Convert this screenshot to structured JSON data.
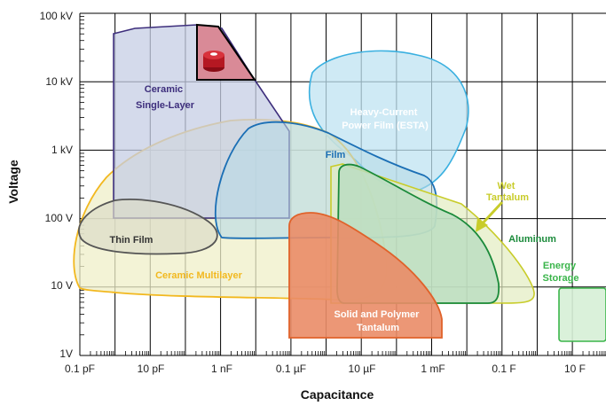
{
  "axes": {
    "x_label": "Capacitance",
    "y_label": "Voltage",
    "x_ticks": [
      "0.1 pF",
      "10 pF",
      "1 nF",
      "0.1 µF",
      "10 µF",
      "1 mF",
      "0.1 F",
      "10 F"
    ],
    "y_ticks": [
      "100 kV",
      "10 kV",
      "1 kV",
      "100 V",
      "10 V",
      "1V"
    ]
  },
  "regions": [
    {
      "id": "ceramic-single-layer",
      "lines": [
        "Ceramic",
        "Single-Layer"
      ],
      "color": "#3d2e7c"
    },
    {
      "id": "heavy-current-film",
      "lines": [
        "Heavy-Current",
        "Power Film (ESTA)"
      ],
      "color": "#1a8fd0"
    },
    {
      "id": "film",
      "lines": [
        "Film"
      ],
      "color": "#1b6fb5"
    },
    {
      "id": "wet-tantalum",
      "lines": [
        "Wet",
        "Tantalum"
      ],
      "color": "#c8cc2a"
    },
    {
      "id": "aluminum",
      "lines": [
        "Aluminum"
      ],
      "color": "#1a8a3a"
    },
    {
      "id": "energy-storage",
      "lines": [
        "Energy",
        "Storage"
      ],
      "color": "#3ab54a"
    },
    {
      "id": "thin-film",
      "lines": [
        "Thin Film"
      ],
      "color": "#444444"
    },
    {
      "id": "ceramic-multilayer",
      "lines": [
        "Ceramic Multilayer"
      ],
      "color": "#f2b81f"
    },
    {
      "id": "solid-polymer-tantalum",
      "lines": [
        "Solid and Polymer",
        "Tantalum"
      ],
      "color": "#e0622a"
    }
  ]
}
